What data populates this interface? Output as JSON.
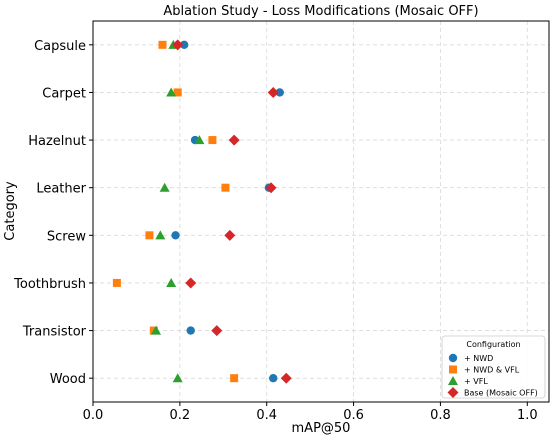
{
  "chart_data": {
    "type": "scatter",
    "title": "Ablation Study - Loss Modifications (Mosaic OFF)",
    "xlabel": "mAP@50",
    "ylabel": "Category",
    "xlim": [
      0.0,
      1.05
    ],
    "xticks": [
      0.0,
      0.2,
      0.4,
      0.6,
      0.8,
      1.0
    ],
    "xtick_labels": [
      "0.0",
      "0.2",
      "0.4",
      "0.6",
      "0.8",
      "1.0"
    ],
    "categories": [
      "Capsule",
      "Carpet",
      "Hazelnut",
      "Leather",
      "Screw",
      "Toothbrush",
      "Transistor",
      "Wood"
    ],
    "grid": true,
    "legend": {
      "title": "Configuration",
      "position": "bottom-right"
    },
    "series": [
      {
        "name": "+ NWD",
        "marker": "circle",
        "color": "#1f77b4",
        "values": [
          0.21,
          0.43,
          0.235,
          0.405,
          0.19,
          null,
          0.225,
          0.415
        ]
      },
      {
        "name": "+ NWD & VFL",
        "marker": "square",
        "color": "#ff7f0e",
        "values": [
          0.16,
          0.195,
          0.275,
          0.305,
          0.13,
          0.055,
          0.14,
          0.325
        ]
      },
      {
        "name": "+ VFL",
        "marker": "triangle",
        "color": "#2ca02c",
        "values": [
          0.185,
          0.18,
          0.245,
          0.165,
          0.155,
          0.18,
          0.145,
          0.195
        ]
      },
      {
        "name": "Base (Mosaic OFF)",
        "marker": "diamond",
        "color": "#d62728",
        "values": [
          0.195,
          0.415,
          0.325,
          0.41,
          0.315,
          0.225,
          0.285,
          0.445
        ]
      }
    ]
  }
}
